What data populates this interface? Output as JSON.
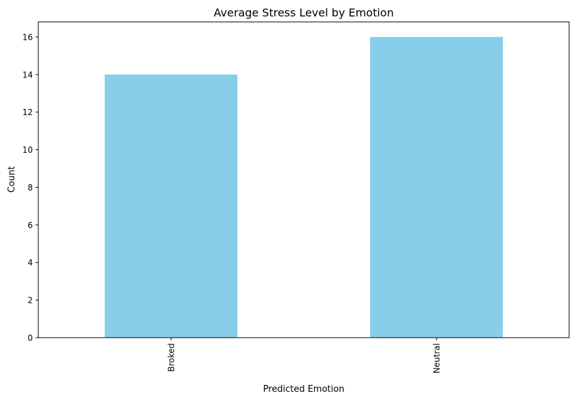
{
  "chart_data": {
    "type": "bar",
    "title": "Average Stress Level by Emotion",
    "xlabel": "Predicted Emotion",
    "ylabel": "Count",
    "categories": [
      "Broked",
      "Neutral"
    ],
    "values": [
      14,
      16
    ],
    "ylim": [
      0,
      16.8
    ],
    "yticks": [
      0,
      2,
      4,
      6,
      8,
      10,
      12,
      14,
      16
    ],
    "bar_color": "#87ceeb",
    "grid": false,
    "legend": "none"
  }
}
